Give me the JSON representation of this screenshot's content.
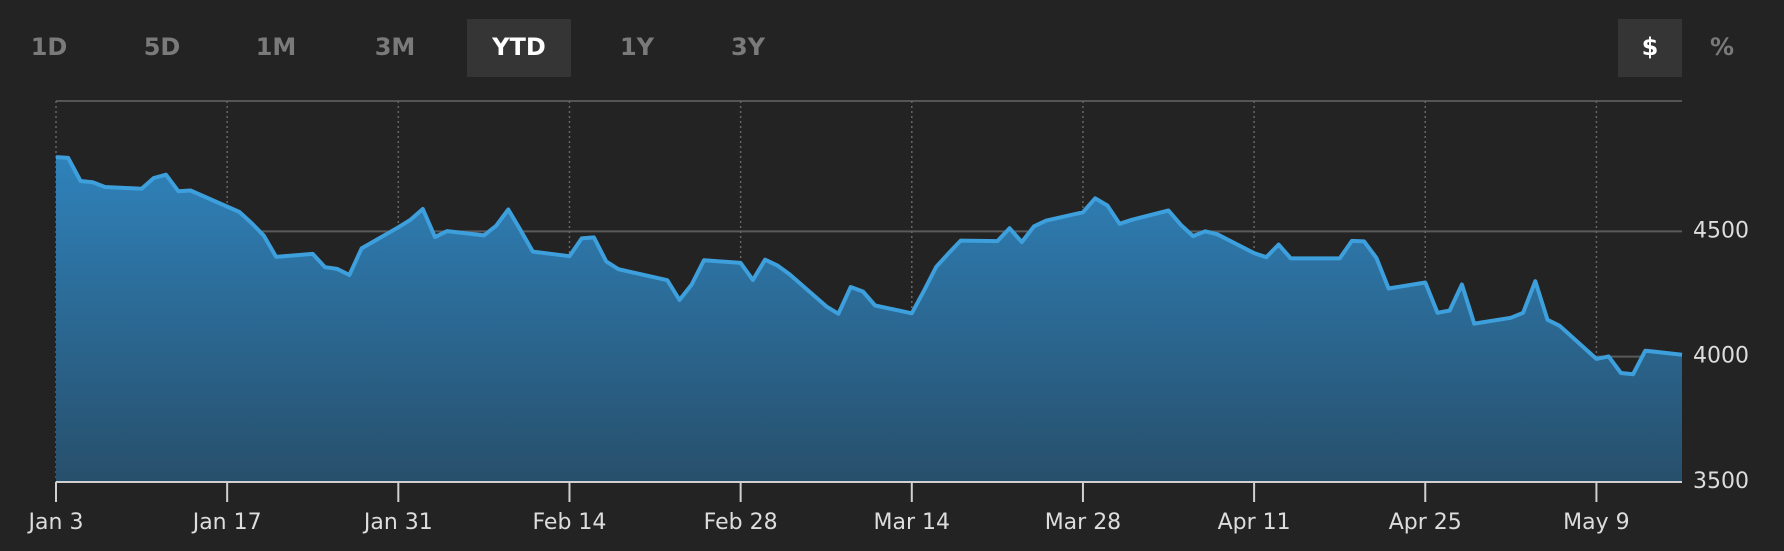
{
  "controls": {
    "ranges": [
      "1D",
      "5D",
      "1M",
      "3M",
      "YTD",
      "1Y",
      "3Y"
    ],
    "active_range": 4,
    "units": [
      "$",
      "%"
    ],
    "active_unit": 0
  },
  "chart_data": {
    "type": "area",
    "color": "#3d9fdc",
    "x": [
      "Jan 3",
      "Jan 4",
      "Jan 5",
      "Jan 6",
      "Jan 7",
      "Jan 10",
      "Jan 11",
      "Jan 12",
      "Jan 13",
      "Jan 14",
      "Jan 18",
      "Jan 19",
      "Jan 20",
      "Jan 21",
      "Jan 24",
      "Jan 25",
      "Jan 26",
      "Jan 27",
      "Jan 28",
      "Jan 31",
      "Feb 1",
      "Feb 2",
      "Feb 3",
      "Feb 4",
      "Feb 7",
      "Feb 8",
      "Feb 9",
      "Feb 10",
      "Feb 11",
      "Feb 14",
      "Feb 15",
      "Feb 16",
      "Feb 17",
      "Feb 18",
      "Feb 22",
      "Feb 23",
      "Feb 24",
      "Feb 25",
      "Feb 28",
      "Mar 1",
      "Mar 2",
      "Mar 3",
      "Mar 4",
      "Mar 7",
      "Mar 8",
      "Mar 9",
      "Mar 10",
      "Mar 11",
      "Mar 14",
      "Mar 15",
      "Mar 16",
      "Mar 17",
      "Mar 18",
      "Mar 21",
      "Mar 22",
      "Mar 23",
      "Mar 24",
      "Mar 25",
      "Mar 28",
      "Mar 29",
      "Mar 30",
      "Mar 31",
      "Apr 1",
      "Apr 4",
      "Apr 5",
      "Apr 6",
      "Apr 7",
      "Apr 8",
      "Apr 11",
      "Apr 12",
      "Apr 13",
      "Apr 14",
      "Apr 18",
      "Apr 19",
      "Apr 20",
      "Apr 21",
      "Apr 22",
      "Apr 25",
      "Apr 26",
      "Apr 27",
      "Apr 28",
      "Apr 29",
      "May 2",
      "May 3",
      "May 4",
      "May 5",
      "May 6",
      "May 9",
      "May 10",
      "May 11",
      "May 12",
      "May 13",
      "May 16"
    ],
    "values": [
      4796,
      4793,
      4701,
      4696,
      4677,
      4670,
      4713,
      4726,
      4660,
      4663,
      4577,
      4533,
      4483,
      4398,
      4410,
      4357,
      4350,
      4326,
      4432,
      4516,
      4546,
      4589,
      4477,
      4501,
      4484,
      4522,
      4587,
      4504,
      4419,
      4401,
      4472,
      4476,
      4380,
      4349,
      4305,
      4226,
      4288,
      4385,
      4374,
      4306,
      4387,
      4364,
      4329,
      4201,
      4171,
      4278,
      4260,
      4204,
      4173,
      4263,
      4358,
      4412,
      4463,
      4461,
      4512,
      4457,
      4520,
      4543,
      4576,
      4632,
      4603,
      4530,
      4546,
      4583,
      4526,
      4481,
      4500,
      4488,
      4413,
      4397,
      4447,
      4392,
      4392,
      4462,
      4460,
      4394,
      4272,
      4296,
      4175,
      4184,
      4288,
      4132,
      4155,
      4175,
      4301,
      4147,
      4123,
      3991,
      4001,
      3935,
      3930,
      4024,
      4008
    ],
    "xlim": [
      "Jan 3",
      "May 16"
    ],
    "xticks": [
      "Jan 3",
      "Jan 17",
      "Jan 31",
      "Feb 14",
      "Feb 28",
      "Mar 14",
      "Mar 28",
      "Apr 11",
      "Apr 25",
      "May 9"
    ],
    "ylim": [
      3500,
      5020
    ],
    "yticks": [
      3500,
      4000,
      4500
    ],
    "grid": true
  }
}
